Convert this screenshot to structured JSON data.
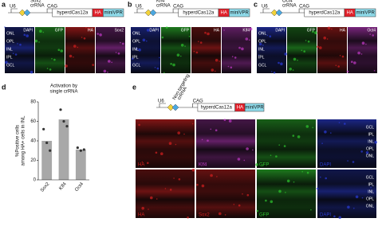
{
  "panels": [
    {
      "label": "a",
      "construct": {
        "u6": "U6",
        "crRNA": [
          "Sox2",
          "crRNA"
        ],
        "cag": "CAG",
        "cas": "hyperdCas12a",
        "ha": "HA",
        "vpr": "miniVPR"
      },
      "channels": [
        {
          "name": "DAPI",
          "color": "#2a3cd8"
        },
        {
          "name": "GFP",
          "color": "#2ec42e"
        },
        {
          "name": "HA",
          "color": "#d42020"
        },
        {
          "name": "Sox2",
          "color": "#c23ac8"
        }
      ],
      "layers": [
        "ONL",
        "OPL",
        "INL",
        "IPL",
        "GCL"
      ]
    },
    {
      "label": "b",
      "construct": {
        "u6": "U6",
        "crRNA": [
          "Klf4",
          "crRNA"
        ],
        "cag": "CAG",
        "cas": "hyperdCas12a",
        "ha": "HA",
        "vpr": "miniVPR"
      },
      "channels": [
        {
          "name": "DAPI",
          "color": "#2a3cd8"
        },
        {
          "name": "GFP",
          "color": "#2ec42e"
        },
        {
          "name": "HA",
          "color": "#d42020"
        },
        {
          "name": "Klf4",
          "color": "#c23ac8"
        }
      ],
      "layers": [
        "ONL",
        "OPL",
        "INL",
        "IPL",
        "GCL"
      ]
    },
    {
      "label": "c",
      "construct": {
        "u6": "U6",
        "crRNA": [
          "Oct4",
          "crRNA"
        ],
        "cag": "CAG",
        "cas": "hyperdCas12a",
        "ha": "HA",
        "vpr": "miniVPR"
      },
      "channels": [
        {
          "name": "DAPI",
          "color": "#2a3cd8"
        },
        {
          "name": "GFP",
          "color": "#2ec42e"
        },
        {
          "name": "HA",
          "color": "#d42020"
        },
        {
          "name": "Oct4",
          "color": "#c23ac8"
        }
      ],
      "layers": [
        "ONL",
        "OPL",
        "INL",
        "IPL",
        "GCL"
      ]
    }
  ],
  "panel_d": {
    "label": "d"
  },
  "chart_data": {
    "type": "bar",
    "title": [
      "Activation by",
      "single crRNA"
    ],
    "y_label": [
      "%Positive cells",
      "among HA+ cells in INL"
    ],
    "categories": [
      "Sox2",
      "Klf4",
      "Oct4"
    ],
    "values": [
      40,
      62,
      31
    ],
    "color": "#a8a8a8",
    "replicates": [
      [
        52,
        38,
        30
      ],
      [
        72,
        60,
        55
      ],
      [
        33,
        30,
        31
      ]
    ],
    "ylim": [
      0,
      80
    ],
    "yticks": [
      0,
      20,
      40,
      60,
      80
    ]
  },
  "panel_e": {
    "label": "e",
    "construct": {
      "u6": "U6",
      "crRNA": [
        "Non-targeting",
        "crRNA"
      ],
      "cag": "CAG",
      "cas": "hyperdCas12a",
      "ha": "HA",
      "vpr": "miniVPR"
    },
    "rows": [
      [
        {
          "name": "HA",
          "color": "#d42020"
        },
        {
          "name": "Klf4",
          "color": "#c23ac8"
        },
        {
          "name": "GFP",
          "color": "#2ec42e"
        },
        {
          "name": "DAPI",
          "color": "#2a3cd8"
        }
      ],
      [
        {
          "name": "HA",
          "color": "#d42020"
        },
        {
          "name": "Sox2",
          "color": "#d42020"
        },
        {
          "name": "GFP",
          "color": "#2ec42e"
        },
        {
          "name": "DAPI",
          "color": "#2a3cd8"
        }
      ]
    ],
    "layers": [
      "GCL",
      "IPL",
      "INL",
      "OPL",
      "ONL"
    ]
  }
}
